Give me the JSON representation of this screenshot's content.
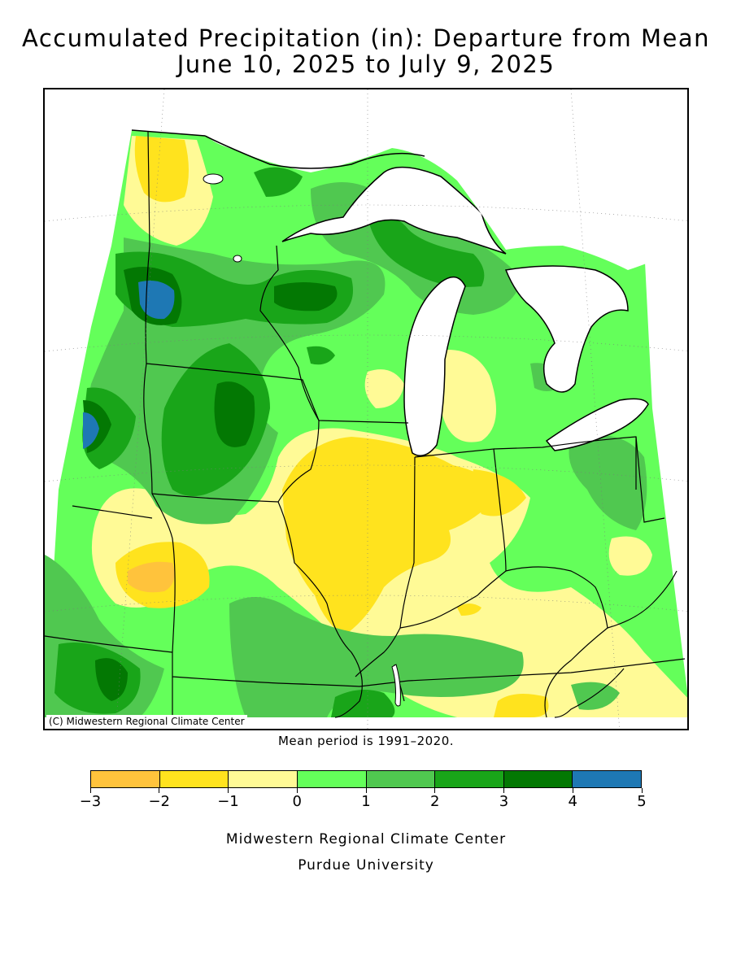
{
  "title_line1": "Accumulated Precipitation (in): Departure from Mean",
  "title_line2": "June 10, 2025 to July 9, 2025",
  "copyright": "(C) Midwestern Regional Climate Center",
  "mean_period": "Mean period is 1991–2020.",
  "legend": {
    "bins": [
      {
        "from": -3,
        "to": -2,
        "color": "#ffc33c"
      },
      {
        "from": -2,
        "to": -1,
        "color": "#ffe31e"
      },
      {
        "from": -1,
        "to": 0,
        "color": "#fffa96"
      },
      {
        "from": 0,
        "to": 1,
        "color": "#64ff5a"
      },
      {
        "from": 1,
        "to": 2,
        "color": "#50c850"
      },
      {
        "from": 2,
        "to": 3,
        "color": "#19a519"
      },
      {
        "from": 3,
        "to": 4,
        "color": "#037803"
      },
      {
        "from": 4,
        "to": 5,
        "color": "#1e78b4"
      }
    ],
    "tick_labels": [
      "−3",
      "−2",
      "−1",
      "0",
      "1",
      "2",
      "3",
      "4",
      "5"
    ]
  },
  "footer_line1": "Midwestern Regional Climate Center",
  "footer_line2": "Purdue University",
  "map": {
    "region": "Upper Midwest",
    "water_color": "#ffffff",
    "boundary_color": "#000000"
  }
}
